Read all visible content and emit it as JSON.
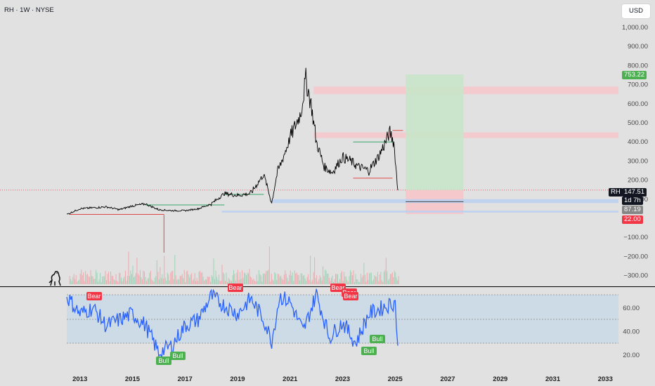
{
  "header": {
    "symbol": "RH · 1W · NYSE",
    "currency": "USD"
  },
  "price_axis": {
    "labels": [
      "1,000.00",
      "900.00",
      "800.00",
      "700.00",
      "600.00",
      "500.00",
      "400.00",
      "300.00",
      "200.00",
      "100.00",
      "−100.00",
      "−200.00",
      "−300.00"
    ]
  },
  "price_tags": {
    "target": {
      "text": "753.22",
      "color": "#4caf50"
    },
    "ticker": "RH",
    "last": {
      "text": "147.51",
      "color": "#131722"
    },
    "countdown": "1d 7h",
    "support": {
      "text": "87.19",
      "color": "#868686"
    },
    "stop": {
      "text": "22.00",
      "color": "#f23645"
    }
  },
  "rsi_axis": {
    "labels": [
      "60.00",
      "40.00",
      "20.00"
    ]
  },
  "time_axis": {
    "labels": [
      "2013",
      "2015",
      "2017",
      "2019",
      "2021",
      "2023",
      "2025",
      "2027",
      "2029",
      "2031",
      "2033"
    ]
  },
  "signals": [
    {
      "text": "Bear",
      "type": "bear"
    },
    {
      "text": "Bull",
      "type": "bull"
    },
    {
      "text": "Bull",
      "type": "bull"
    },
    {
      "text": "Bear",
      "type": "bear"
    },
    {
      "text": "Bear",
      "type": "bear"
    },
    {
      "text": "Bear",
      "type": "bear"
    },
    {
      "text": "Bear",
      "type": "bear"
    },
    {
      "text": "Bull",
      "type": "bull"
    },
    {
      "text": "Bull",
      "type": "bull"
    }
  ],
  "colors": {
    "bull": "#4caf50",
    "bear": "#f23645",
    "rsi_line": "#2962ff",
    "price_line": "#000000",
    "long_zone": "#c8e6c9",
    "stop_zone": "#f7c6ca",
    "support_zone": "#bbd0ef"
  },
  "icons": {
    "brand": "dinosaur-logo-icon"
  },
  "chart_data": {
    "type": "line",
    "series": [
      {
        "x": [
          2012.5,
          2013,
          2013.5,
          2014,
          2014.5,
          2015,
          2015.5,
          2016,
          2016.5,
          2017,
          2017.5,
          2018,
          2018.5,
          2019,
          2019.5,
          2020,
          2020.3,
          2020.5,
          2021,
          2021.4,
          2021.6,
          2021.8,
          2022,
          2022.3,
          2022.6,
          2023,
          2023.3,
          2023.6,
          2024,
          2024.4,
          2024.8,
          2024.95,
          2025.1
        ],
        "y": [
          20,
          50,
          55,
          60,
          45,
          65,
          75,
          45,
          40,
          40,
          50,
          75,
          130,
          120,
          130,
          230,
          80,
          230,
          420,
          550,
          730,
          600,
          400,
          270,
          240,
          320,
          300,
          270,
          250,
          330,
          450,
          400,
          147
        ]
      }
    ],
    "rsi": {
      "x": [
        2012.5,
        2013,
        2013.5,
        2014,
        2014.5,
        2015,
        2015.5,
        2016,
        2016.5,
        2017,
        2017.5,
        2018,
        2018.5,
        2019,
        2019.5,
        2020,
        2020.3,
        2020.6,
        2021,
        2021.5,
        2022,
        2022.5,
        2023,
        2023.5,
        2024,
        2024.5,
        2025,
        2025.1
      ],
      "y": [
        70,
        55,
        60,
        45,
        50,
        55,
        45,
        22,
        28,
        45,
        50,
        70,
        62,
        55,
        68,
        50,
        32,
        70,
        65,
        40,
        72,
        35,
        48,
        30,
        55,
        60,
        65,
        28
      ]
    },
    "zones": {
      "target": 753.22,
      "last": 147.51,
      "support": 87.19,
      "stop": 22.0
    },
    "resistance_zones": [
      [
        650,
        690
      ],
      [
        420,
        450
      ]
    ],
    "xlim": [
      2012.5,
      2033.5
    ],
    "ylim": [
      -320,
      1040
    ]
  }
}
